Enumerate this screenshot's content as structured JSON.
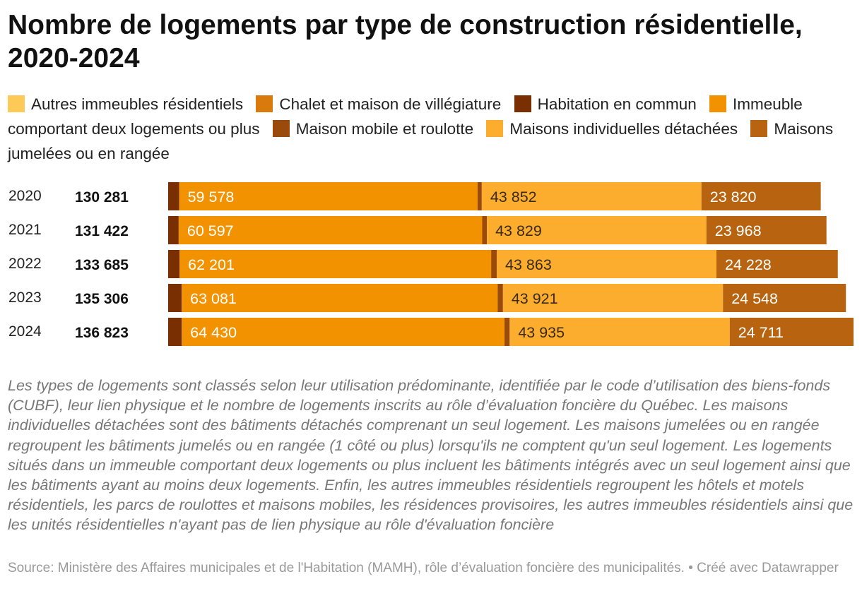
{
  "title": "Nombre de logements par type de construction résidentielle, 2020-2024",
  "colors": {
    "autres": "#fdca58",
    "chalet": "#d97b0c",
    "commun": "#7a2f03",
    "immeuble": "#f39200",
    "mobile": "#9a4a0a",
    "individuelles": "#fdad2e",
    "jumelees": "#b8630f"
  },
  "chart_data": {
    "type": "bar",
    "orientation": "horizontal",
    "stacked": true,
    "title": "Nombre de logements par type de construction résidentielle, 2020-2024",
    "categories": [
      "2020",
      "2021",
      "2022",
      "2023",
      "2024"
    ],
    "totals": [
      "130 281",
      "131 422",
      "133 685",
      "135 306",
      "136 823"
    ],
    "total_values": [
      130281,
      131422,
      133685,
      135306,
      136823
    ],
    "legend": [
      {
        "key": "autres",
        "label": "Autres immeubles résidentiels",
        "color": "#fdca58"
      },
      {
        "key": "chalet",
        "label": "Chalet et maison de villégiature",
        "color": "#d97b0c"
      },
      {
        "key": "commun",
        "label": "Habitation en commun",
        "color": "#7a2f03"
      },
      {
        "key": "immeuble",
        "label": "Immeuble comportant deux logements ou plus",
        "color": "#f39200"
      },
      {
        "key": "mobile",
        "label": "Maison mobile et roulotte",
        "color": "#9a4a0a"
      },
      {
        "key": "individuelles",
        "label": "Maisons individuelles détachées",
        "color": "#fdad2e"
      },
      {
        "key": "jumelees",
        "label": "Maisons jumelées ou en rangée",
        "color": "#b8630f"
      }
    ],
    "series": [
      {
        "key": "commun",
        "color": "#7a2f03",
        "values": [
          2200,
          2100,
          2280,
          2700,
          2720
        ],
        "labels": [
          "",
          "",
          "",
          "",
          ""
        ]
      },
      {
        "key": "immeuble",
        "color": "#f39200",
        "values": [
          59578,
          60597,
          62201,
          63081,
          64430
        ],
        "labels": [
          "59 578",
          "60 597",
          "62 201",
          "63 081",
          "64 430"
        ]
      },
      {
        "key": "mobile",
        "color": "#9a4a0a",
        "values": [
          831,
          928,
          1113,
          1056,
          1027
        ],
        "labels": [
          "",
          "",
          "",
          "",
          ""
        ]
      },
      {
        "key": "individuelles",
        "color": "#fdad2e",
        "values": [
          43852,
          43829,
          43863,
          43921,
          43935
        ],
        "labels": [
          "43 852",
          "43 829",
          "43 863",
          "43 921",
          "43 935"
        ]
      },
      {
        "key": "jumelees",
        "color": "#b8630f",
        "values": [
          23820,
          23968,
          24228,
          24548,
          24711
        ],
        "labels": [
          "23 820",
          "23 968",
          "24 228",
          "24 548",
          "24 711"
        ]
      }
    ],
    "xlim": [
      0,
      136823
    ],
    "grid": false,
    "legend_position": "top"
  },
  "notes": "Les types de logements sont classés selon leur utilisation prédominante, identifiée par le code d’utilisation des biens-fonds (CUBF), leur lien physique et le nombre de logements inscrits au rôle d’évaluation foncière du Québec. Les maisons individuelles détachées sont des bâtiments détachés comprenant un seul logement. Les maisons jumelées ou en rangée regroupent les bâtiments jumelés ou en rangée (1 côté ou plus) lorsqu'ils ne comptent qu'un seul logement. Les logements situés dans un immeuble comportant deux logements ou plus incluent les bâtiments intégrés avec un seul logement ainsi que les bâtiments ayant au moins deux logements. Enfin, les autres immeubles résidentiels regroupent les hôtels et motels résidentiels, les parcs de roulottes et maisons mobiles, les résidences provisoires, les autres immeubles résidentiels ainsi que les unités résidentielles n'ayant pas de lien physique au rôle d'évaluation foncière",
  "source": "Source: Ministère des Affaires municipales et de l'Habitation (MAMH), rôle d’évaluation foncière des municipalités. • Créé avec Datawrapper"
}
